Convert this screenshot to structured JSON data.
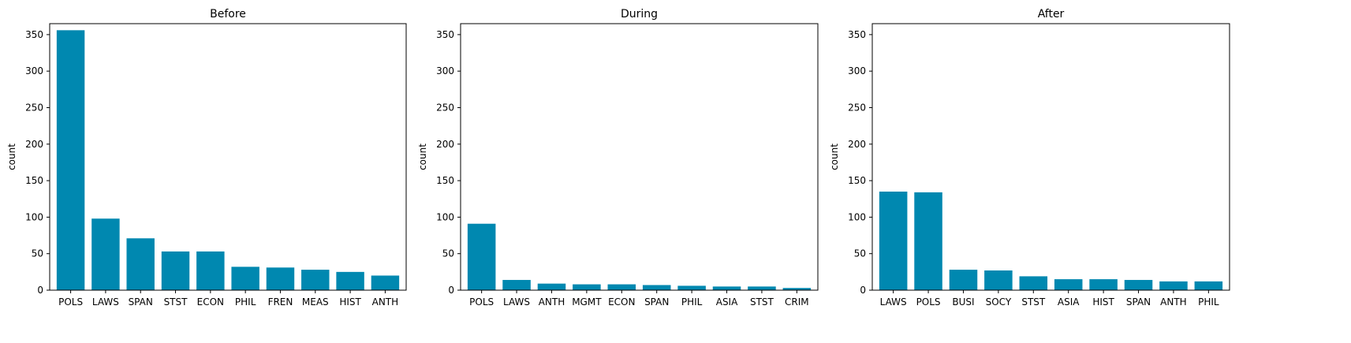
{
  "chart_data": [
    {
      "type": "bar",
      "title": "Before",
      "xlabel": "",
      "ylabel": "count",
      "ylim": [
        0,
        365
      ],
      "yticks": [
        0,
        50,
        100,
        150,
        200,
        250,
        300,
        350
      ],
      "categories": [
        "POLS",
        "LAWS",
        "SPAN",
        "STST",
        "ECON",
        "PHIL",
        "FREN",
        "MEAS",
        "HIST",
        "ANTH"
      ],
      "values": [
        356,
        98,
        71,
        53,
        53,
        32,
        31,
        28,
        25,
        20
      ],
      "bar_color": "#0088b0",
      "grid": false
    },
    {
      "type": "bar",
      "title": "During",
      "xlabel": "",
      "ylabel": "count",
      "ylim": [
        0,
        365
      ],
      "yticks": [
        0,
        50,
        100,
        150,
        200,
        250,
        300,
        350
      ],
      "categories": [
        "POLS",
        "LAWS",
        "ANTH",
        "MGMT",
        "ECON",
        "SPAN",
        "PHIL",
        "ASIA",
        "STST",
        "CRIM"
      ],
      "values": [
        91,
        14,
        9,
        8,
        8,
        7,
        6,
        5,
        5,
        3
      ],
      "bar_color": "#0088b0",
      "grid": false
    },
    {
      "type": "bar",
      "title": "After",
      "xlabel": "",
      "ylabel": "count",
      "ylim": [
        0,
        365
      ],
      "yticks": [
        0,
        50,
        100,
        150,
        200,
        250,
        300,
        350
      ],
      "categories": [
        "LAWS",
        "POLS",
        "BUSI",
        "SOCY",
        "STST",
        "ASIA",
        "HIST",
        "SPAN",
        "ANTH",
        "PHIL"
      ],
      "values": [
        135,
        134,
        28,
        27,
        19,
        15,
        15,
        14,
        12,
        12
      ],
      "bar_color": "#0088b0",
      "grid": false
    }
  ]
}
